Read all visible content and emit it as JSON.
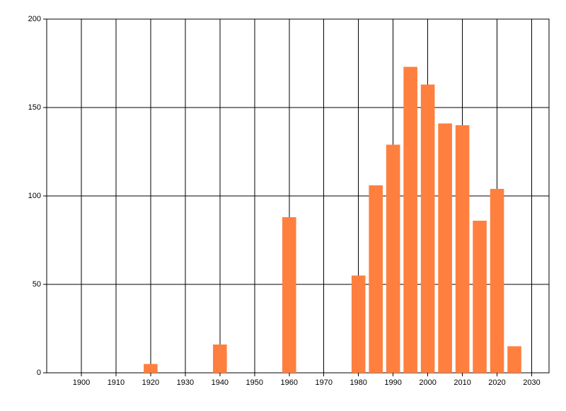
{
  "chart_data": {
    "type": "bar",
    "x": [
      1920,
      1940,
      1960,
      1980,
      1985,
      1990,
      1995,
      2000,
      2005,
      2010,
      2015,
      2020,
      2025
    ],
    "values": [
      5,
      16,
      88,
      55,
      106,
      129,
      173,
      163,
      141,
      140,
      86,
      104,
      15
    ],
    "color": "#ff7f3f",
    "xlim": [
      1890,
      2035
    ],
    "xticks": [
      1900,
      1910,
      1920,
      1930,
      1940,
      1950,
      1960,
      1970,
      1980,
      1990,
      2000,
      2010,
      2020,
      2030
    ],
    "ylim": [
      0,
      200
    ],
    "yticks": [
      0,
      50,
      100,
      150,
      200
    ],
    "grid": true
  }
}
